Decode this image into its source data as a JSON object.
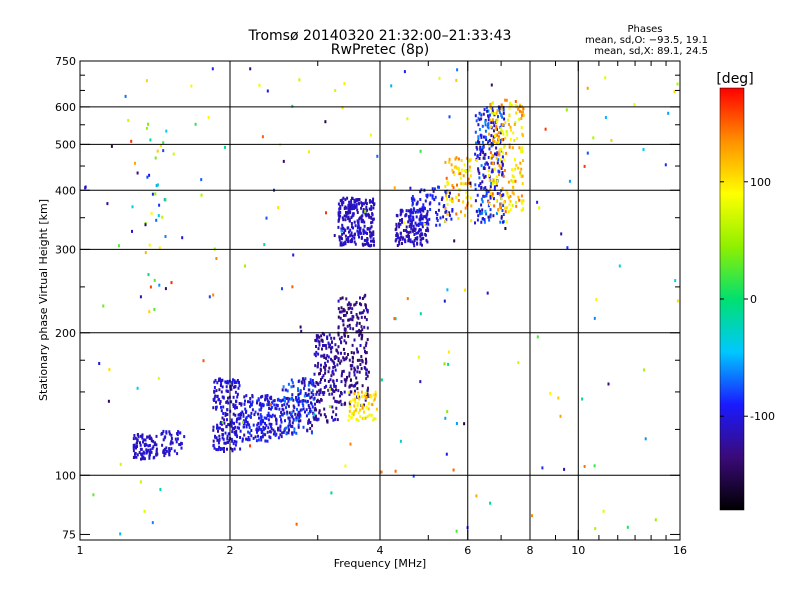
{
  "chart_data": {
    "type": "scatter",
    "title": "Tromsø 20140320 21:32:00–21:33:43",
    "subtitle": "RwPretec (8p)",
    "xlabel": "Frequency [MHz]",
    "ylabel": "Stationary phase Virtual Height [km]",
    "x_scale": "log",
    "y_scale": "log",
    "xlim": [
      1,
      16
    ],
    "ylim": [
      73,
      750
    ],
    "x_ticks": [
      1,
      2,
      4,
      6,
      8,
      10,
      16
    ],
    "x_minor_ticks": [
      3,
      5,
      7,
      9,
      11,
      12,
      13,
      14,
      15
    ],
    "y_ticks": [
      75,
      100,
      200,
      300,
      400,
      500,
      600,
      750
    ],
    "y_minor_ticks": [
      125,
      150,
      175,
      250,
      350,
      450,
      550,
      650,
      700
    ],
    "grid_x": [
      2,
      4,
      6,
      8,
      10
    ],
    "grid_y": [
      100,
      200,
      300,
      400,
      500,
      600
    ],
    "grid": true,
    "colorbar": {
      "label": "[deg]",
      "range": [
        -180,
        180
      ],
      "ticks": [
        100,
        0,
        -100
      ],
      "colors": [
        "#000000",
        "#3a0a78",
        "#1a1aff",
        "#00c8ff",
        "#00e070",
        "#90f000",
        "#ffff00",
        "#ff9000",
        "#ff0000"
      ]
    },
    "stats": {
      "heading": "Phases",
      "line1": "mean, sd,O: −93.5, 19.1",
      "line2": "mean, sd,X:  89.1, 24.5"
    },
    "clusters": [
      {
        "f": [
          1.28,
          1.43
        ],
        "h": [
          108,
          122
        ],
        "n": 90,
        "phase": [
          -118,
          -100
        ]
      },
      {
        "f": [
          1.45,
          1.62
        ],
        "h": [
          110,
          124
        ],
        "n": 50,
        "phase": [
          -115,
          -95
        ]
      },
      {
        "f": [
          1.85,
          2.1
        ],
        "h": [
          112,
          160
        ],
        "n": 200,
        "phase": [
          -125,
          -90
        ]
      },
      {
        "f": [
          2.1,
          2.55
        ],
        "h": [
          118,
          148
        ],
        "n": 200,
        "phase": [
          -120,
          -80
        ]
      },
      {
        "f": [
          2.55,
          2.95
        ],
        "h": [
          122,
          160
        ],
        "n": 170,
        "phase": [
          -130,
          -60
        ]
      },
      {
        "f": [
          2.95,
          3.3
        ],
        "h": [
          128,
          200
        ],
        "n": 170,
        "phase": [
          -140,
          -100
        ]
      },
      {
        "f": [
          3.3,
          3.8
        ],
        "h": [
          140,
          240
        ],
        "n": 220,
        "phase": [
          -150,
          -110
        ]
      },
      {
        "f": [
          3.45,
          3.95
        ],
        "h": [
          130,
          150
        ],
        "n": 70,
        "phase": [
          80,
          130
        ]
      },
      {
        "f": [
          3.3,
          3.9
        ],
        "h": [
          305,
          385
        ],
        "n": 260,
        "phase": [
          -125,
          -100
        ]
      },
      {
        "f": [
          4.3,
          5.0
        ],
        "h": [
          305,
          365
        ],
        "n": 150,
        "phase": [
          -125,
          -100
        ]
      },
      {
        "f": [
          4.6,
          5.6
        ],
        "h": [
          335,
          410
        ],
        "n": 90,
        "phase": [
          -110,
          -80
        ]
      },
      {
        "f": [
          5.4,
          6.1
        ],
        "h": [
          340,
          470
        ],
        "n": 80,
        "phase": [
          80,
          150
        ]
      },
      {
        "f": [
          6.2,
          7.1
        ],
        "h": [
          340,
          600
        ],
        "n": 230,
        "phase": [
          -130,
          -60
        ]
      },
      {
        "f": [
          6.6,
          7.8
        ],
        "h": [
          360,
          620
        ],
        "n": 200,
        "phase": [
          70,
          150
        ]
      },
      {
        "f": [
          1.35,
          1.5
        ],
        "h": [
          210,
          580
        ],
        "n": 30,
        "phase": [
          -150,
          120
        ]
      },
      {
        "f": [
          1.02,
          16
        ],
        "h": [
          75,
          740
        ],
        "n": 180,
        "phase": [
          -160,
          170
        ]
      }
    ]
  }
}
